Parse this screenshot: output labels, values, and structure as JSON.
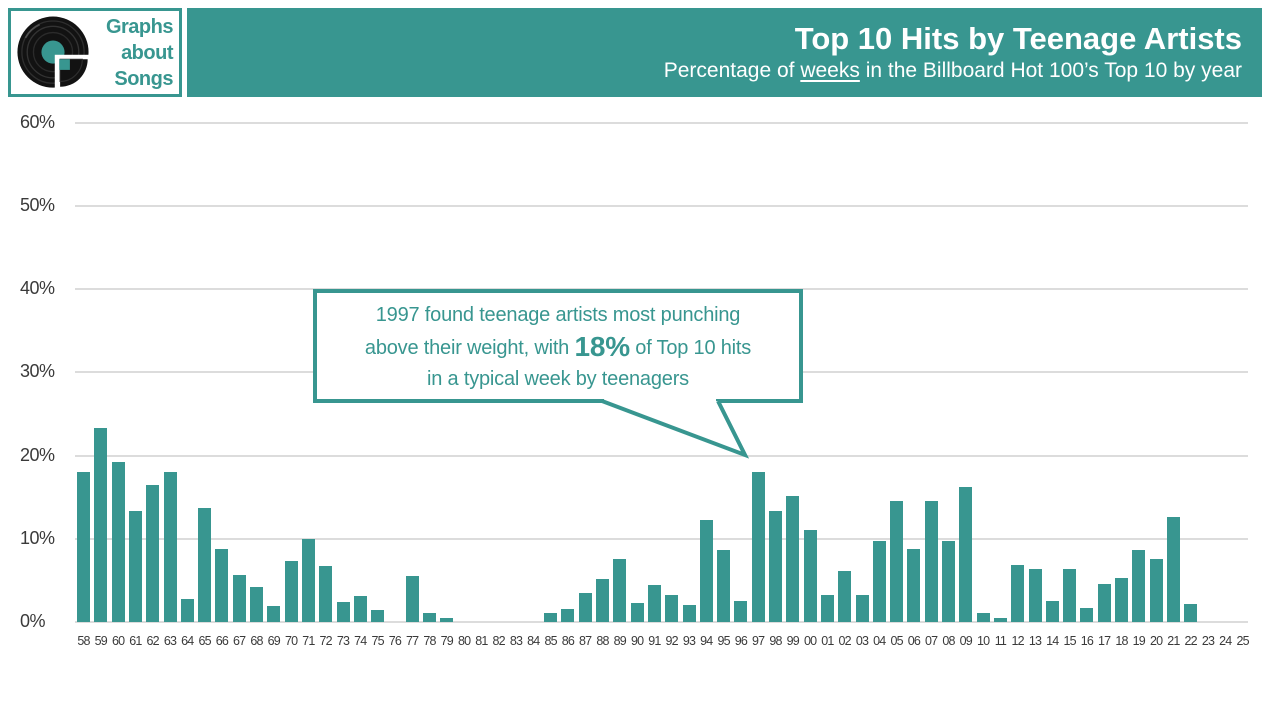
{
  "logo": {
    "lines": [
      "Graphs",
      "about",
      "Songs"
    ]
  },
  "header": {
    "title": "Top 10 Hits by Teenage Artists",
    "subtitle_prefix": "Percentage of ",
    "subtitle_underlined": "weeks",
    "subtitle_suffix": " in the Billboard Hot 100’s Top 10 by year"
  },
  "annotation": {
    "line1": "1997 found teenage artists most punching",
    "line2_prefix": "above their weight, with ",
    "highlight": "18%",
    "line2_suffix": " of Top 10 hits",
    "line3": "in a typical week by teenagers"
  },
  "colors": {
    "teal": "#389690",
    "grid": "#dcdcdc",
    "axis_text": "#3a3a3a",
    "background": "#ffffff",
    "header_text": "#ffffff",
    "record_black": "#121212"
  },
  "chart_data": {
    "type": "bar",
    "title": "Top 10 Hits by Teenage Artists",
    "subtitle": "Percentage of weeks in the Billboard Hot 100’s Top 10 by year",
    "xlabel": "",
    "ylabel": "",
    "ylim": [
      0,
      60
    ],
    "grid": true,
    "yticks": [
      "0%",
      "10%",
      "20%",
      "30%",
      "40%",
      "50%",
      "60%"
    ],
    "bar_color": "#389690",
    "annotation_text": "1997 found teenage artists most punching above their weight, with 18% of Top 10 hits in a typical week by teenagers",
    "annotation_points_to": "97",
    "categories": [
      "58",
      "59",
      "60",
      "61",
      "62",
      "63",
      "64",
      "65",
      "66",
      "67",
      "68",
      "69",
      "70",
      "71",
      "72",
      "73",
      "74",
      "75",
      "76",
      "77",
      "78",
      "79",
      "80",
      "81",
      "82",
      "83",
      "84",
      "85",
      "86",
      "87",
      "88",
      "89",
      "90",
      "91",
      "92",
      "93",
      "94",
      "95",
      "96",
      "97",
      "98",
      "99",
      "00",
      "01",
      "02",
      "03",
      "04",
      "05",
      "06",
      "07",
      "08",
      "09",
      "10",
      "11",
      "12",
      "13",
      "14",
      "15",
      "16",
      "17",
      "18",
      "19",
      "20",
      "21",
      "22",
      "23",
      "24",
      "25"
    ],
    "values": [
      18.0,
      23.3,
      19.2,
      13.4,
      16.5,
      18.0,
      2.8,
      13.7,
      8.8,
      5.6,
      4.2,
      1.9,
      7.3,
      10.0,
      6.7,
      2.4,
      3.1,
      1.4,
      0,
      5.5,
      1.1,
      0.5,
      0,
      0,
      0,
      0,
      0,
      1.1,
      1.6,
      3.5,
      5.2,
      7.6,
      2.3,
      4.5,
      3.2,
      2.0,
      12.3,
      8.6,
      2.5,
      18.0,
      13.3,
      15.1,
      11.1,
      3.3,
      6.1,
      3.2,
      9.7,
      14.5,
      8.8,
      14.6,
      9.7,
      16.2,
      1.1,
      0.5,
      6.8,
      6.4,
      2.5,
      6.4,
      1.7,
      4.6,
      5.3,
      8.7,
      7.6,
      12.6,
      2.2,
      0,
      0,
      0
    ]
  }
}
